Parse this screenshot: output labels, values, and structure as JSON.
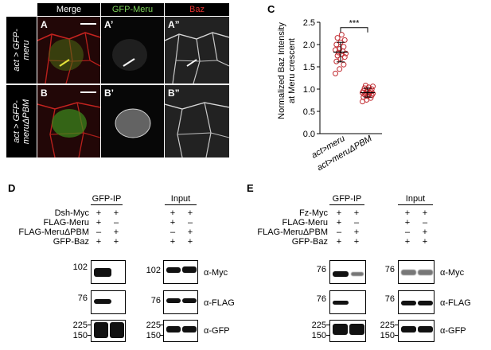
{
  "panels": {
    "A": "A",
    "B": "B",
    "C": "C",
    "D": "D",
    "E": "E"
  },
  "micro": {
    "columns": [
      "Merge",
      "GFP-Meru",
      "Baz"
    ],
    "column_colors": [
      "#ffffff",
      "#7ed35a",
      "#e0312e"
    ],
    "rows": [
      "act > GFP-meru",
      "act > GFP-meruΔPBM"
    ],
    "row1_line1": "act > GFP-",
    "row1_line2": "meru",
    "row2_line1": "act > GFP-",
    "row2_line2": "meruΔPBM",
    "labels": [
      "A",
      "A’",
      "A”",
      "B",
      "B’",
      "B”"
    ]
  },
  "chart_data": {
    "type": "scatter",
    "ylabel_line1": "Normalized Baz Intensity",
    "ylabel_line2": "at Meru crescent",
    "ylim": [
      0,
      2.5
    ],
    "yticks": [
      "0.0",
      "0.5",
      "1.0",
      "1.5",
      "2.0",
      "2.5"
    ],
    "categories": [
      "act>meru",
      "act>meruΔPBM"
    ],
    "series": [
      {
        "values": [
          1.35,
          1.45,
          1.55,
          1.62,
          1.68,
          1.72,
          1.75,
          1.78,
          1.8,
          1.82,
          1.85,
          1.88,
          1.9,
          1.95,
          2.0,
          2.05,
          2.1,
          2.15,
          2.22
        ]
      },
      {
        "values": [
          0.72,
          0.76,
          0.8,
          0.82,
          0.84,
          0.86,
          0.88,
          0.88,
          0.9,
          0.9,
          0.92,
          0.92,
          0.94,
          0.95,
          0.96,
          0.98,
          1.0,
          1.02,
          1.04,
          1.06,
          1.08
        ]
      }
    ],
    "means": [
      1.83,
      0.92
    ],
    "sd": [
      0.22,
      0.1
    ],
    "significance": "***",
    "color": "#c0282e"
  },
  "blotD": {
    "ip_header": "GFP-IP",
    "input_header": "Input",
    "rows": [
      "Dsh-Myc",
      "FLAG-Meru",
      "FLAG-MeruΔPBM",
      "GFP-Baz"
    ],
    "ip_signs": [
      [
        "+",
        "+"
      ],
      [
        "+",
        "–"
      ],
      [
        "–",
        "+"
      ],
      [
        "+",
        "+"
      ]
    ],
    "input_signs": [
      [
        "+",
        "+"
      ],
      [
        "+",
        "–"
      ],
      [
        "–",
        "+"
      ],
      [
        "+",
        "+"
      ]
    ],
    "mw1": "102",
    "mw2": "76",
    "mw3a": "225",
    "mw3b": "150",
    "in_mw1": "102",
    "in_mw2": "76",
    "in_mw3a": "225",
    "in_mw3b": "150",
    "ab1": "α-Myc",
    "ab2": "α-FLAG",
    "ab3": "α-GFP"
  },
  "blotE": {
    "ip_header": "GFP-IP",
    "input_header": "Input",
    "rows": [
      "Fz-Myc",
      "FLAG-Meru",
      "FLAG-MeruΔPBM",
      "GFP-Baz"
    ],
    "ip_signs": [
      [
        "+",
        "+"
      ],
      [
        "+",
        "–"
      ],
      [
        "–",
        "+"
      ],
      [
        "+",
        "+"
      ]
    ],
    "input_signs": [
      [
        "+",
        "+"
      ],
      [
        "+",
        "–"
      ],
      [
        "–",
        "+"
      ],
      [
        "+",
        "+"
      ]
    ],
    "mw1": "76",
    "mw2": "76",
    "mw3a": "225",
    "mw3b": "150",
    "in_mw1": "76",
    "in_mw2": "76",
    "in_mw3a": "225",
    "in_mw3b": "150",
    "ab1": "α-Myc",
    "ab2": "α-FLAG",
    "ab3": "α-GFP"
  }
}
